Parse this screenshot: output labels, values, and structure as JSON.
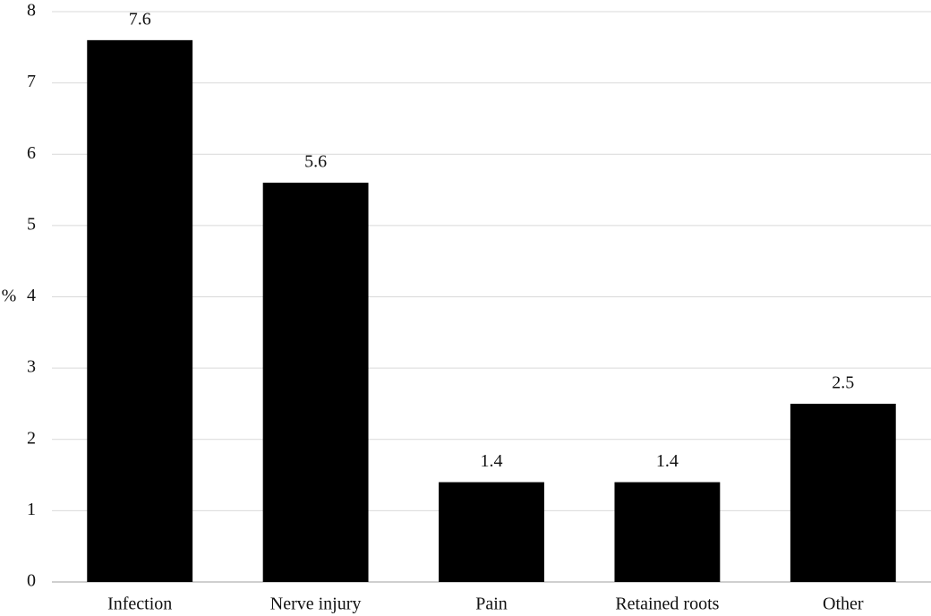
{
  "chart_data": {
    "type": "bar",
    "ylabel": "%",
    "categories": [
      "Infection",
      "Nerve injury",
      "Pain",
      "Retained roots",
      "Other"
    ],
    "values": [
      7.6,
      5.6,
      1.4,
      1.4,
      2.5
    ],
    "color": "#000000",
    "ylim": [
      0,
      8
    ],
    "yticks": [
      0,
      1,
      2,
      3,
      4,
      5,
      6,
      7,
      8
    ],
    "grid": true,
    "data_labels": true
  }
}
